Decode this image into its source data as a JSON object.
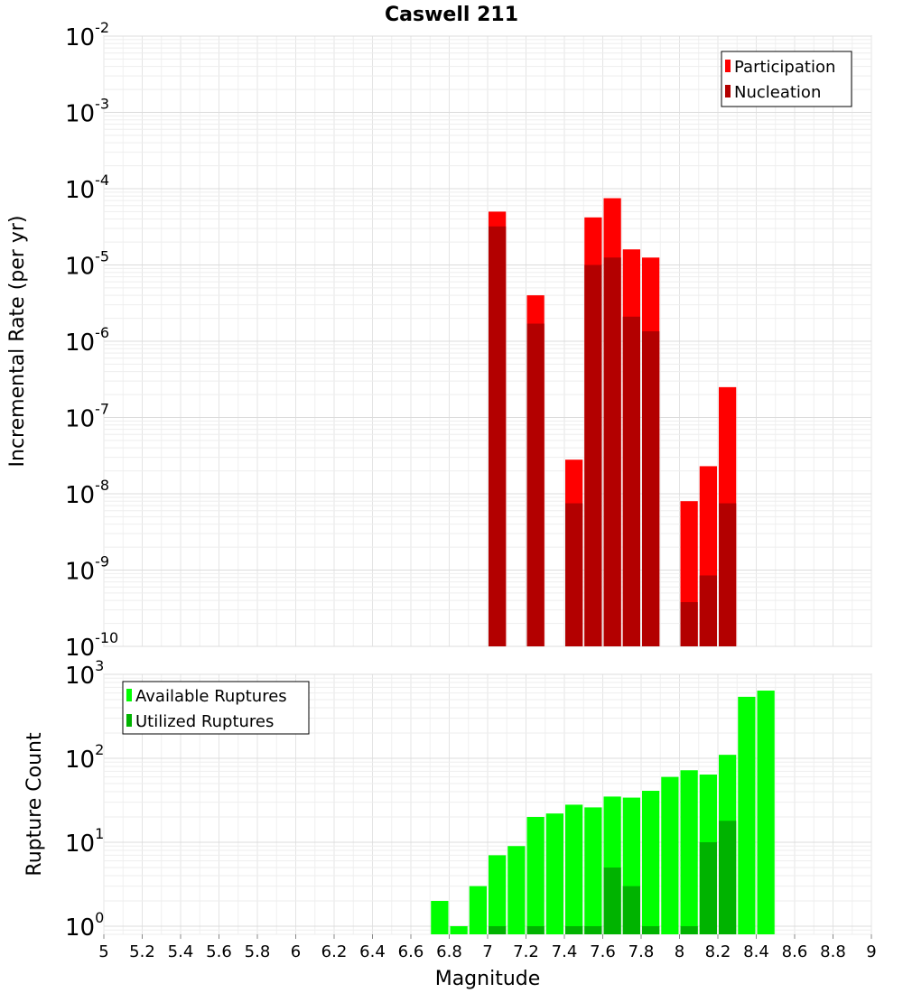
{
  "chart_data": [
    {
      "type": "bar",
      "panel": "top",
      "title": "Caswell 211",
      "xlabel": "Magnitude",
      "ylabel": "Incremental Rate (per yr)",
      "yscale": "log",
      "ylim": [
        1e-10,
        0.01
      ],
      "xlim": [
        5,
        9
      ],
      "y_tick_labels": [
        {
          "base": "10",
          "exp": "-10",
          "value": 1e-10
        },
        {
          "base": "10",
          "exp": "-9",
          "value": 1e-09
        },
        {
          "base": "10",
          "exp": "-8",
          "value": 1e-08
        },
        {
          "base": "10",
          "exp": "-7",
          "value": 1e-07
        },
        {
          "base": "10",
          "exp": "-6",
          "value": 1e-06
        },
        {
          "base": "10",
          "exp": "-5",
          "value": 1e-05
        },
        {
          "base": "10",
          "exp": "-4",
          "value": 0.0001
        },
        {
          "base": "10",
          "exp": "-3",
          "value": 0.001
        },
        {
          "base": "10",
          "exp": "-2",
          "value": 0.01
        }
      ],
      "grid": true,
      "legend_position": "top-right",
      "series": [
        {
          "name": "Participation",
          "color": "#ff0000",
          "points": [
            {
              "x": 7.05,
              "y": 5e-05
            },
            {
              "x": 7.25,
              "y": 4e-06
            },
            {
              "x": 7.45,
              "y": 2.8e-08
            },
            {
              "x": 7.55,
              "y": 4.2e-05
            },
            {
              "x": 7.65,
              "y": 7.5e-05
            },
            {
              "x": 7.75,
              "y": 1.6e-05
            },
            {
              "x": 7.85,
              "y": 1.25e-05
            },
            {
              "x": 8.05,
              "y": 8e-09
            },
            {
              "x": 8.15,
              "y": 2.3e-08
            },
            {
              "x": 8.25,
              "y": 2.5e-07
            }
          ]
        },
        {
          "name": "Nucleation",
          "color": "#b30000",
          "points": [
            {
              "x": 7.05,
              "y": 3.2e-05
            },
            {
              "x": 7.25,
              "y": 1.7e-06
            },
            {
              "x": 7.45,
              "y": 7.5e-09
            },
            {
              "x": 7.55,
              "y": 1e-05
            },
            {
              "x": 7.65,
              "y": 1.25e-05
            },
            {
              "x": 7.75,
              "y": 2.1e-06
            },
            {
              "x": 7.85,
              "y": 1.35e-06
            },
            {
              "x": 8.05,
              "y": 3.8e-10
            },
            {
              "x": 8.15,
              "y": 8.5e-10
            },
            {
              "x": 8.25,
              "y": 7.5e-09
            }
          ]
        }
      ]
    },
    {
      "type": "bar",
      "panel": "bottom",
      "xlabel": "Magnitude",
      "ylabel": "Rupture Count",
      "yscale": "log",
      "ylim": [
        0.8,
        1000
      ],
      "xlim": [
        5,
        9
      ],
      "x_tick_labels": [
        "5",
        "5.2",
        "5.4",
        "5.6",
        "5.8",
        "6",
        "6.2",
        "6.4",
        "6.6",
        "6.8",
        "7",
        "7.2",
        "7.4",
        "7.6",
        "7.8",
        "8",
        "8.2",
        "8.4",
        "8.6",
        "8.8",
        "9"
      ],
      "y_tick_labels": [
        {
          "base": "10",
          "exp": "0",
          "value": 1
        },
        {
          "base": "10",
          "exp": "1",
          "value": 10
        },
        {
          "base": "10",
          "exp": "2",
          "value": 100
        },
        {
          "base": "10",
          "exp": "3",
          "value": 1000
        }
      ],
      "grid": true,
      "legend_position": "top-left",
      "series": [
        {
          "name": "Available Ruptures",
          "color": "#00ff00",
          "points": [
            {
              "x": 6.75,
              "y": 2
            },
            {
              "x": 6.85,
              "y": 1
            },
            {
              "x": 6.95,
              "y": 3
            },
            {
              "x": 7.05,
              "y": 7
            },
            {
              "x": 7.15,
              "y": 9
            },
            {
              "x": 7.25,
              "y": 20
            },
            {
              "x": 7.35,
              "y": 22
            },
            {
              "x": 7.45,
              "y": 28
            },
            {
              "x": 7.55,
              "y": 26
            },
            {
              "x": 7.65,
              "y": 35
            },
            {
              "x": 7.75,
              "y": 34
            },
            {
              "x": 7.85,
              "y": 41
            },
            {
              "x": 7.95,
              "y": 60
            },
            {
              "x": 8.05,
              "y": 72
            },
            {
              "x": 8.15,
              "y": 64
            },
            {
              "x": 8.25,
              "y": 110
            },
            {
              "x": 8.35,
              "y": 540
            },
            {
              "x": 8.45,
              "y": 640
            }
          ]
        },
        {
          "name": "Utilized Ruptures",
          "color": "#00b300",
          "points": [
            {
              "x": 7.05,
              "y": 1
            },
            {
              "x": 7.25,
              "y": 1
            },
            {
              "x": 7.45,
              "y": 1
            },
            {
              "x": 7.55,
              "y": 1
            },
            {
              "x": 7.65,
              "y": 5
            },
            {
              "x": 7.75,
              "y": 3
            },
            {
              "x": 7.85,
              "y": 1
            },
            {
              "x": 8.05,
              "y": 1
            },
            {
              "x": 8.15,
              "y": 10
            },
            {
              "x": 8.25,
              "y": 18
            }
          ]
        }
      ]
    }
  ]
}
